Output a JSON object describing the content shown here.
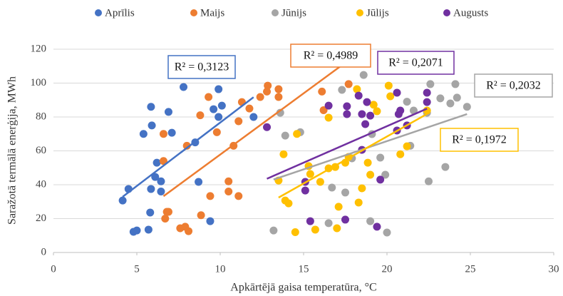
{
  "chart_data": {
    "type": "scatter",
    "x_label": "Apkārtējā gaisa temperatūra, °C",
    "y_label": "Saražotā termālā enerģija, MWh",
    "xlim": [
      0,
      30
    ],
    "xticks": [
      0,
      5,
      10,
      15,
      20,
      25,
      30
    ],
    "ylim": [
      0,
      120
    ],
    "yticks": [
      0,
      20,
      40,
      60,
      80,
      100,
      120
    ],
    "grid": true,
    "legend": "top",
    "series": [
      {
        "name": "Aprīlis",
        "color": "#4472c4",
        "trendline_label": "R² = 0,3123",
        "x": [
          4.15,
          4.5,
          4.8,
          5.0,
          5.4,
          5.7,
          5.8,
          5.85,
          5.85,
          5.9,
          6.1,
          6.2,
          6.45,
          6.45,
          6.9,
          7.1,
          7.8,
          8.5,
          8.7,
          9.4,
          9.6,
          9.9,
          9.9,
          10.1,
          12.0
        ],
        "values": [
          30.7,
          37.5,
          12.2,
          13,
          70,
          13.5,
          23.6,
          86,
          37.5,
          75,
          44.6,
          53,
          42,
          36,
          83,
          70.7,
          97.7,
          65,
          41.7,
          18.5,
          84.6,
          96.4,
          80,
          86.7,
          80
        ]
      },
      {
        "name": "Maijs",
        "color": "#ed7d31",
        "trendline_label": "R² = 0,4989",
        "x": [
          6.6,
          6.6,
          6.8,
          6.7,
          6.9,
          7.6,
          7.9,
          8.1,
          8.0,
          8.8,
          8.85,
          9.3,
          9.4,
          9.8,
          10.5,
          10.5,
          10.8,
          11.1,
          11.1,
          11.3,
          11.75,
          12.4,
          12.8,
          12.85,
          13.5,
          13.5,
          16.1,
          16.2,
          17.7
        ],
        "values": [
          70,
          54,
          24,
          20,
          24,
          14.3,
          15.2,
          12.6,
          63,
          81,
          22,
          91.8,
          33.3,
          71,
          42,
          36,
          63,
          33.3,
          77.5,
          88.8,
          85,
          91.8,
          95,
          98.5,
          96.4,
          91.8,
          95,
          84,
          99.4
        ]
      },
      {
        "name": "Jūnijs",
        "color": "#a5a5a5",
        "trendline_label": "R² = 0,2032",
        "x": [
          13.2,
          13.6,
          13.9,
          14.8,
          16.5,
          16.7,
          17.3,
          17.5,
          17.9,
          18.6,
          19.0,
          19.1,
          19.6,
          19.9,
          20.0,
          21.2,
          21.4,
          21.6,
          22.4,
          22.5,
          22.6,
          23.2,
          23.5,
          23.8,
          24.1,
          24.2,
          24.8
        ],
        "values": [
          13,
          82.5,
          69,
          71,
          17.3,
          38.3,
          96,
          35.4,
          55.6,
          104.8,
          18.5,
          69.9,
          56,
          45.9,
          11.8,
          89,
          63,
          83.8,
          82.5,
          42,
          99.4,
          91,
          50.5,
          88,
          99.4,
          91.4,
          86
        ]
      },
      {
        "name": "Jūlijs",
        "color": "#ffc000",
        "trendline_label": "R² = 0,1972",
        "x": [
          13.5,
          13.8,
          13.9,
          14.1,
          14.6,
          14.5,
          15.3,
          15.4,
          15.7,
          16.0,
          16.5,
          16.5,
          16.9,
          17.0,
          17.1,
          17.5,
          17.7,
          18.2,
          18.3,
          18.5,
          18.85,
          19.0,
          19.2,
          19.4,
          20.1,
          20.2,
          20.8,
          21.2,
          22.4
        ],
        "values": [
          42.5,
          58,
          30.7,
          29,
          70,
          12,
          51,
          46.3,
          13.5,
          41.7,
          49.7,
          79.6,
          50.5,
          14.3,
          27,
          53,
          56.4,
          96.4,
          29.5,
          37.9,
          53,
          45.9,
          87.2,
          83.4,
          98.5,
          92.2,
          58,
          62.7,
          83.8
        ]
      },
      {
        "name": "Augusts",
        "color": "#7030a0",
        "trendline_label": "R² = 0,2071",
        "x": [
          12.8,
          15.1,
          15.1,
          15.4,
          16.5,
          17.6,
          17.6,
          18.3,
          18.5,
          18.7,
          18.5,
          18.8,
          19.0,
          19.4,
          19.6,
          20.6,
          20.6,
          20.7,
          20.8,
          21.2,
          22.4,
          22.4,
          17.5
        ],
        "values": [
          74,
          41.7,
          36.6,
          18.5,
          86.7,
          86.3,
          81.7,
          92.6,
          81.7,
          75.8,
          60.6,
          88.8,
          80.8,
          15.2,
          43,
          72,
          94.3,
          81.7,
          83.8,
          75,
          94.3,
          88.8,
          19.4
        ]
      }
    ]
  }
}
